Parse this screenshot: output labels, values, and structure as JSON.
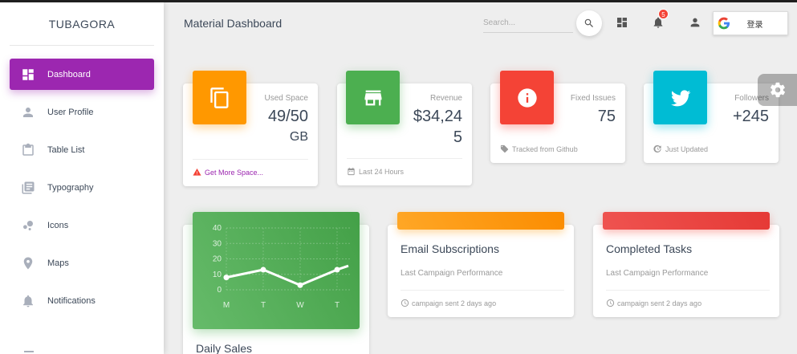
{
  "sidebar": {
    "brand": "TUBAGORA",
    "items": [
      {
        "label": "Dashboard",
        "icon": "dashboard-icon"
      },
      {
        "label": "User Profile",
        "icon": "person-icon"
      },
      {
        "label": "Table List",
        "icon": "clipboard-icon"
      },
      {
        "label": "Typography",
        "icon": "library-books-icon"
      },
      {
        "label": "Icons",
        "icon": "bubble-chart-icon"
      },
      {
        "label": "Maps",
        "icon": "location-icon"
      },
      {
        "label": "Notifications",
        "icon": "bell-icon"
      }
    ],
    "active": "Dashboard"
  },
  "header": {
    "title": "Material Dashboard",
    "search_placeholder": "Search...",
    "notification_count": "5",
    "login_label": "登录"
  },
  "stats": [
    {
      "category": "Used Space",
      "value_line1": "49/50",
      "value_line2": "GB",
      "footer": "Get More Space...",
      "footer_icon": "warning-icon",
      "color": "#ff9800",
      "icon": "copy-icon"
    },
    {
      "category": "Revenue",
      "value_line1": "$34,24",
      "value_line2": "5",
      "footer": "Last 24 Hours",
      "footer_icon": "date-range-icon",
      "color": "#4caf50",
      "icon": "store-icon"
    },
    {
      "category": "Fixed Issues",
      "value_line1": "75",
      "footer": "Tracked from Github",
      "footer_icon": "tag-icon",
      "color": "#f44336",
      "icon": "info-icon"
    },
    {
      "category": "Followers",
      "value_line1": "+245",
      "footer": "Just Updated",
      "footer_icon": "update-icon",
      "color": "#00bcd4",
      "icon": "twitter-icon"
    }
  ],
  "charts": [
    {
      "title": "Daily Sales",
      "color": "#4caf50"
    },
    {
      "title": "Email Subscriptions",
      "subtitle": "Last Campaign Performance",
      "footer": "campaign sent 2 days ago",
      "color": "#ff9800"
    },
    {
      "title": "Completed Tasks",
      "subtitle": "Last Campaign Performance",
      "footer": "campaign sent 2 days ago",
      "color": "#f44336"
    }
  ],
  "chart_data": {
    "type": "line",
    "categories": [
      "M",
      "T",
      "W",
      "T"
    ],
    "values": [
      8,
      13,
      3,
      13
    ],
    "ylim": [
      0,
      40
    ],
    "yticks": [
      "0",
      "10",
      "20",
      "30",
      "40"
    ],
    "title": "Daily Sales",
    "grid": true
  }
}
